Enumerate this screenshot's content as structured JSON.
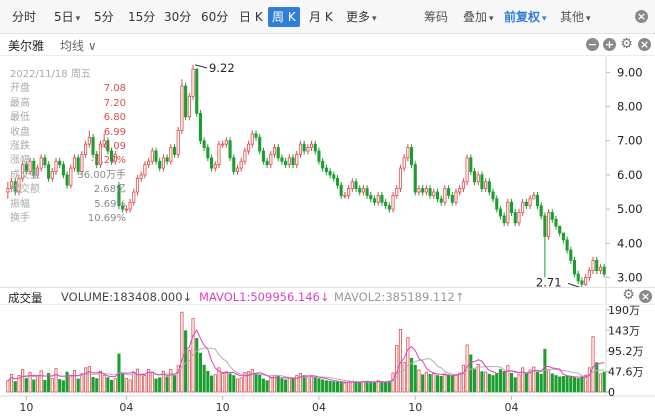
{
  "toolbar": {
    "tabs": [
      {
        "label": "分时",
        "active": false,
        "arrow": false
      },
      {
        "label": "5日",
        "active": false,
        "arrow": true
      },
      {
        "label": "5分",
        "active": false,
        "arrow": false
      },
      {
        "label": "15分",
        "active": false,
        "arrow": false
      },
      {
        "label": "30分",
        "active": false,
        "arrow": false
      },
      {
        "label": "60分",
        "active": false,
        "arrow": false
      },
      {
        "label": "日 K",
        "active": false,
        "arrow": false
      },
      {
        "label": "周 K",
        "active": true,
        "arrow": false
      },
      {
        "label": "月 K",
        "active": false,
        "arrow": false
      },
      {
        "label": "更多",
        "active": false,
        "arrow": true
      }
    ],
    "right": [
      {
        "label": "筹码",
        "arrow": false,
        "blue": false
      },
      {
        "label": "叠加",
        "arrow": true,
        "blue": false
      },
      {
        "label": "前复权",
        "arrow": true,
        "blue": true
      },
      {
        "label": "其他",
        "arrow": true,
        "blue": false
      }
    ],
    "close_icon": "close-icon"
  },
  "subbar": {
    "stock_name": "美尔雅",
    "ma_label": "均线 ∨"
  },
  "info": {
    "date": "2022/11/18 周五",
    "rows": [
      {
        "label": "开盘",
        "value": "7.08"
      },
      {
        "label": "最高",
        "value": "7.20"
      },
      {
        "label": "最低",
        "value": "6.80"
      },
      {
        "label": "收盘",
        "value": "6.99"
      },
      {
        "label": "涨跌",
        "value": "-0.09"
      },
      {
        "label": "涨幅",
        "value": "-1.27%"
      },
      {
        "label": "成交量",
        "value": "36.00万手"
      },
      {
        "label": "成交额",
        "value": "2.68亿"
      },
      {
        "label": "振幅",
        "value": "5.69%"
      },
      {
        "label": "换手",
        "value": "10.69%"
      }
    ]
  },
  "volume_bar": {
    "title": "成交量",
    "volume": "VOLUME:183408.000↓",
    "mavol1": "MAVOL1:509956.146↓",
    "mavol2": "MAVOL2:385189.112↑"
  },
  "colors": {
    "up": "#e14a4a",
    "down": "#1a9e2e",
    "ma1": "#e040c0",
    "ma2": "#b0b0b0",
    "active": "#2f7fd8"
  },
  "chart_data": {
    "type": "candlestick",
    "price_axis": {
      "ticks": [
        "9.00",
        "8.00",
        "7.00",
        "6.00",
        "5.00",
        "4.00",
        "3.00"
      ],
      "range": [
        2.75,
        9.45
      ]
    },
    "volume_axis": {
      "ticks": [
        "190万",
        "143万",
        "95.2万",
        "47.6万",
        "0"
      ],
      "max": 1900000
    },
    "x_tick_labels": [
      "10",
      "04",
      "10",
      "04",
      "10",
      "04"
    ],
    "annotations": [
      {
        "label": "9.22",
        "value": 9.22
      },
      {
        "label": "2.71",
        "value": 2.71
      }
    ],
    "close": [
      5.6,
      5.8,
      5.5,
      5.9,
      6.3,
      6.1,
      6.4,
      6.0,
      6.2,
      6.5,
      6.3,
      5.9,
      6.1,
      6.4,
      6.3,
      6.0,
      5.7,
      6.2,
      6.5,
      6.1,
      6.6,
      6.9,
      7.1,
      6.6,
      6.3,
      6.9,
      7.0,
      6.7,
      6.4,
      6.6,
      5.1,
      5.0,
      5.0,
      5.2,
      5.5,
      5.9,
      6.0,
      6.3,
      6.4,
      6.7,
      6.4,
      6.2,
      6.5,
      6.4,
      6.8,
      6.6,
      7.3,
      8.6,
      7.7,
      8.3,
      9.1,
      7.8,
      7.0,
      6.8,
      6.5,
      6.2,
      6.3,
      6.9,
      6.9,
      7.0,
      6.5,
      6.1,
      6.2,
      6.4,
      6.7,
      6.9,
      7.2,
      7.1,
      6.7,
      6.4,
      6.3,
      6.6,
      6.8,
      6.5,
      6.4,
      6.3,
      6.5,
      6.3,
      6.6,
      6.9,
      6.7,
      6.8,
      6.9,
      6.7,
      6.4,
      6.2,
      6.1,
      6.0,
      5.9,
      5.7,
      5.4,
      5.4,
      5.6,
      5.8,
      5.6,
      5.5,
      5.6,
      5.4,
      5.3,
      5.2,
      5.4,
      5.2,
      5.1,
      5.0,
      5.4,
      5.6,
      6.2,
      6.5,
      6.8,
      6.3,
      5.5,
      5.6,
      5.5,
      5.6,
      5.4,
      5.5,
      5.3,
      5.2,
      5.6,
      5.4,
      5.2,
      5.5,
      5.6,
      5.8,
      6.5,
      6.1,
      5.8,
      6.0,
      5.6,
      5.8,
      5.5,
      5.3,
      5.0,
      4.8,
      4.6,
      5.2,
      4.9,
      4.6,
      4.9,
      5.2,
      5.1,
      5.3,
      5.4,
      5.1,
      4.8,
      4.2,
      4.9,
      4.7,
      4.5,
      4.3,
      4.1,
      3.8,
      3.5,
      3.1,
      2.9,
      2.8,
      3.0,
      3.2,
      3.5,
      3.2,
      3.3,
      3.1
    ],
    "open": [
      5.5,
      5.6,
      5.8,
      5.5,
      5.9,
      6.3,
      6.1,
      6.4,
      6.0,
      6.2,
      6.5,
      6.3,
      5.9,
      6.1,
      6.4,
      6.3,
      6.0,
      5.7,
      6.2,
      6.5,
      6.1,
      6.6,
      6.9,
      7.1,
      6.6,
      6.3,
      6.9,
      7.0,
      6.7,
      6.4,
      5.7,
      5.1,
      5.0,
      5.0,
      5.2,
      5.5,
      5.9,
      6.0,
      6.3,
      6.4,
      6.7,
      6.4,
      6.2,
      6.5,
      6.4,
      6.8,
      6.6,
      7.3,
      8.6,
      7.7,
      8.3,
      9.1,
      7.8,
      7.0,
      6.8,
      6.5,
      6.2,
      6.3,
      6.9,
      6.9,
      7.0,
      6.5,
      6.1,
      6.2,
      6.4,
      6.7,
      6.9,
      7.2,
      7.1,
      6.7,
      6.4,
      6.3,
      6.6,
      6.8,
      6.5,
      6.4,
      6.3,
      6.5,
      6.3,
      6.6,
      6.9,
      6.7,
      6.8,
      6.9,
      6.7,
      6.4,
      6.2,
      6.1,
      6.0,
      5.9,
      5.7,
      5.4,
      5.4,
      5.6,
      5.8,
      5.6,
      5.5,
      5.6,
      5.4,
      5.3,
      5.2,
      5.4,
      5.2,
      5.1,
      5.0,
      5.4,
      5.6,
      6.2,
      6.5,
      6.8,
      6.3,
      5.5,
      5.6,
      5.5,
      5.6,
      5.4,
      5.5,
      5.3,
      5.2,
      5.6,
      5.4,
      5.2,
      5.5,
      5.6,
      5.8,
      6.5,
      6.1,
      5.8,
      6.0,
      5.6,
      5.8,
      5.5,
      5.3,
      5.0,
      4.8,
      4.6,
      5.2,
      4.9,
      4.6,
      4.9,
      5.2,
      5.1,
      5.3,
      5.4,
      5.1,
      4.8,
      4.2,
      4.9,
      4.7,
      4.5,
      4.3,
      4.1,
      3.8,
      3.5,
      3.1,
      2.9,
      2.8,
      3.0,
      3.2,
      3.5,
      3.2,
      3.3
    ],
    "high": [
      5.8,
      5.9,
      5.9,
      6.0,
      6.4,
      6.4,
      6.5,
      6.5,
      6.3,
      6.6,
      6.6,
      6.4,
      6.2,
      6.5,
      6.5,
      6.4,
      6.1,
      6.3,
      6.6,
      6.6,
      6.7,
      7.0,
      7.3,
      7.2,
      6.7,
      7.0,
      7.2,
      7.1,
      6.8,
      6.7,
      5.8,
      5.2,
      5.1,
      5.3,
      5.6,
      6.0,
      6.1,
      6.4,
      6.5,
      6.8,
      6.8,
      6.5,
      6.6,
      6.6,
      6.9,
      6.9,
      7.4,
      8.8,
      8.7,
      8.4,
      9.22,
      9.1,
      7.9,
      7.1,
      6.9,
      6.6,
      6.4,
      7.0,
      7.0,
      7.1,
      7.1,
      6.6,
      6.3,
      6.5,
      6.8,
      7.0,
      7.3,
      7.3,
      7.2,
      6.8,
      6.5,
      6.7,
      6.9,
      6.9,
      6.6,
      6.5,
      6.6,
      6.6,
      6.7,
      7.0,
      7.0,
      6.9,
      7.0,
      7.0,
      6.8,
      6.5,
      6.3,
      6.2,
      6.1,
      6.0,
      5.8,
      5.5,
      5.7,
      5.9,
      5.9,
      5.7,
      5.7,
      5.7,
      5.5,
      5.4,
      5.5,
      5.5,
      5.3,
      5.2,
      5.5,
      5.7,
      6.3,
      6.6,
      6.9,
      6.9,
      6.4,
      5.7,
      5.7,
      5.7,
      5.7,
      5.6,
      5.6,
      5.4,
      5.7,
      5.7,
      5.5,
      5.6,
      5.7,
      5.9,
      6.6,
      6.6,
      6.2,
      6.1,
      6.1,
      5.9,
      5.9,
      5.6,
      5.4,
      5.1,
      4.9,
      5.3,
      5.3,
      5.0,
      5.0,
      5.3,
      5.3,
      5.4,
      5.5,
      5.5,
      5.2,
      4.9,
      5.0,
      5.0,
      4.8,
      4.5,
      4.3,
      4.2,
      3.9,
      3.6,
      3.2,
      3.0,
      3.1,
      3.3,
      3.6,
      3.6,
      3.4,
      3.4
    ],
    "low": [
      5.3,
      5.5,
      5.4,
      5.4,
      5.8,
      6.0,
      6.0,
      5.9,
      5.9,
      6.1,
      6.2,
      5.8,
      5.8,
      6.0,
      6.2,
      5.9,
      5.6,
      5.6,
      6.1,
      6.0,
      6.0,
      6.5,
      6.8,
      6.5,
      6.2,
      6.2,
      6.8,
      6.6,
      6.3,
      6.3,
      5.0,
      4.9,
      4.9,
      4.9,
      5.1,
      5.4,
      5.8,
      5.9,
      6.2,
      6.3,
      6.3,
      6.1,
      6.1,
      6.3,
      6.3,
      6.5,
      6.5,
      7.2,
      7.6,
      7.6,
      8.2,
      7.7,
      6.9,
      6.7,
      6.4,
      6.1,
      6.1,
      6.2,
      6.8,
      6.8,
      6.4,
      6.0,
      6.0,
      6.1,
      6.3,
      6.6,
      6.8,
      7.0,
      6.6,
      6.3,
      6.2,
      6.2,
      6.5,
      6.4,
      6.3,
      6.2,
      6.2,
      6.2,
      6.2,
      6.5,
      6.6,
      6.6,
      6.7,
      6.6,
      6.3,
      6.1,
      6.0,
      5.9,
      5.8,
      5.6,
      5.3,
      5.3,
      5.3,
      5.5,
      5.5,
      5.4,
      5.4,
      5.3,
      5.2,
      5.1,
      5.1,
      5.1,
      5.0,
      4.9,
      4.9,
      5.3,
      5.5,
      6.1,
      6.4,
      6.2,
      5.4,
      5.4,
      5.4,
      5.4,
      5.3,
      5.3,
      5.2,
      5.1,
      5.1,
      5.3,
      5.1,
      5.1,
      5.4,
      5.5,
      5.7,
      6.0,
      5.7,
      5.7,
      5.5,
      5.5,
      5.4,
      5.2,
      4.9,
      4.7,
      4.5,
      4.5,
      4.8,
      4.5,
      4.5,
      4.8,
      5.0,
      5.0,
      5.3,
      5.0,
      4.7,
      3.0,
      4.1,
      4.6,
      4.4,
      4.2,
      4.0,
      3.7,
      3.4,
      3.0,
      2.8,
      2.71,
      2.75,
      2.9,
      3.1,
      3.1,
      3.1,
      3.0
    ],
    "volume": [
      260000,
      410000,
      240000,
      380000,
      520000,
      310000,
      450000,
      280000,
      360000,
      490000,
      270000,
      430000,
      310000,
      540000,
      290000,
      260000,
      460000,
      370000,
      500000,
      300000,
      420000,
      560000,
      590000,
      340000,
      310000,
      480000,
      390000,
      330000,
      270000,
      310000,
      880000,
      420000,
      310000,
      280000,
      450000,
      530000,
      410000,
      380000,
      520000,
      460000,
      300000,
      330000,
      480000,
      350000,
      520000,
      380000,
      610000,
      1850000,
      1420000,
      960000,
      1700000,
      1240000,
      900000,
      620000,
      480000,
      370000,
      400000,
      560000,
      430000,
      470000,
      420000,
      380000,
      300000,
      330000,
      450000,
      470000,
      520000,
      420000,
      390000,
      300000,
      260000,
      330000,
      380000,
      360000,
      300000,
      280000,
      320000,
      330000,
      380000,
      430000,
      380000,
      350000,
      360000,
      340000,
      310000,
      280000,
      260000,
      250000,
      240000,
      230000,
      220000,
      210000,
      230000,
      250000,
      240000,
      230000,
      240000,
      250000,
      230000,
      220000,
      260000,
      230000,
      230000,
      250000,
      440000,
      1080000,
      1450000,
      690000,
      1260000,
      780000,
      620000,
      510000,
      400000,
      460000,
      410000,
      430000,
      380000,
      360000,
      420000,
      390000,
      360000,
      410000,
      440000,
      620000,
      1090000,
      860000,
      520000,
      640000,
      470000,
      460000,
      410000,
      380000,
      420000,
      520000,
      480000,
      610000,
      430000,
      330000,
      400000,
      560000,
      430000,
      510000,
      580000,
      460000,
      410000,
      990000,
      520000,
      420000,
      380000,
      350000,
      360000,
      380000,
      350000,
      330000,
      310000,
      350000,
      390000,
      560000,
      1280000,
      680000,
      420000,
      460000
    ]
  }
}
